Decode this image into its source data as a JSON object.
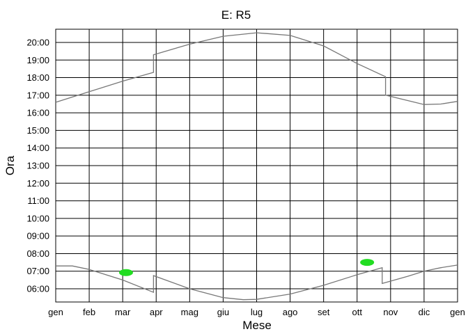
{
  "chart_data": {
    "type": "line",
    "title": "E: R5",
    "xlabel": "Mese",
    "ylabel": "Ora",
    "x_ticks": [
      "gen",
      "feb",
      "mar",
      "apr",
      "mag",
      "giu",
      "lug",
      "ago",
      "set",
      "ott",
      "nov",
      "dic",
      "gen"
    ],
    "y_ticks": [
      "06:00",
      "07:00",
      "08:00",
      "09:00",
      "10:00",
      "11:00",
      "12:00",
      "13:00",
      "14:00",
      "15:00",
      "16:00",
      "17:00",
      "18:00",
      "19:00",
      "20:00"
    ],
    "xlim": [
      0,
      12
    ],
    "ylim": [
      5.25,
      20.75
    ],
    "grid": true,
    "series": [
      {
        "role": "upper-curve",
        "color": "#777777",
        "x": [
          0,
          1,
          2,
          2.92,
          2.92,
          4,
          5,
          6,
          7,
          8,
          9,
          9.85,
          9.85,
          10.5,
          11,
          11.5,
          12
        ],
        "y": [
          16.6,
          17.2,
          17.8,
          18.3,
          19.3,
          19.9,
          20.35,
          20.55,
          20.4,
          19.8,
          18.8,
          18.05,
          17.0,
          16.7,
          16.47,
          16.5,
          16.65
        ]
      },
      {
        "role": "lower-curve",
        "color": "#777777",
        "x": [
          0,
          0.5,
          1,
          2,
          2.92,
          2.92,
          4,
          5,
          5.6,
          6,
          7,
          8,
          9,
          9.75,
          9.75,
          10.5,
          11,
          11.5,
          12
        ],
        "y": [
          7.3,
          7.3,
          7.1,
          6.5,
          5.8,
          6.75,
          6.0,
          5.5,
          5.38,
          5.4,
          5.7,
          6.2,
          6.8,
          7.2,
          6.3,
          6.7,
          7.0,
          7.2,
          7.35
        ]
      }
    ],
    "markers": [
      {
        "color": "#22dd22",
        "x": 2.1,
        "y": 6.92
      },
      {
        "color": "#22dd22",
        "x": 9.3,
        "y": 7.5
      }
    ]
  }
}
